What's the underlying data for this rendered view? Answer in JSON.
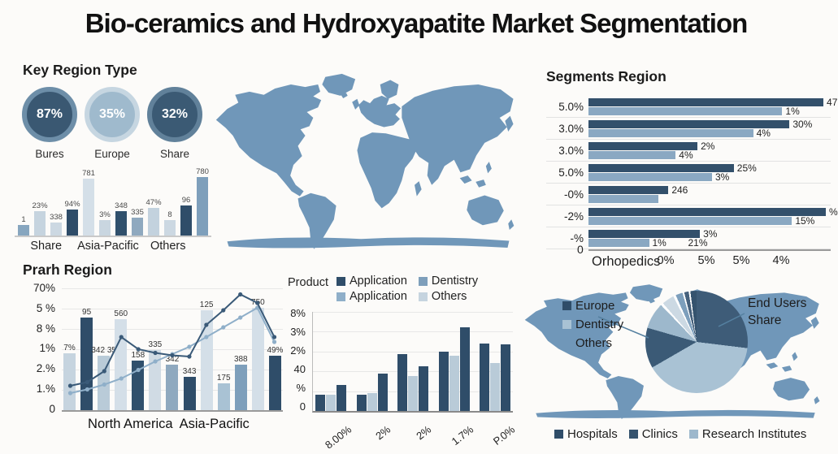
{
  "title": "Bio-ceramics and Hydroxyapatite Market Segmentation",
  "key_region": {
    "heading": "Key Region Type",
    "circles": [
      {
        "value": "87%",
        "label": "Bures",
        "fill": "#3a5872",
        "ring": "#6d8ea8"
      },
      {
        "value": "35%",
        "label": "Europe",
        "fill": "#9fbacd",
        "ring": "#c6d6e1"
      },
      {
        "value": "32%",
        "label": "Share",
        "fill": "#3b5a74",
        "ring": "#61819a"
      }
    ]
  },
  "map_color": "#7097b9",
  "map_faint_color": "#e0e8ee",
  "chart_data": [
    {
      "id": "region-bar",
      "type": "bar",
      "categories": [
        "Share",
        "Asia-Pacific",
        "Others"
      ],
      "ylim": [
        0,
        100
      ],
      "bars": [
        {
          "label": "1",
          "value": 16,
          "color": "#87a6bf"
        },
        {
          "label": "23%",
          "value": 38,
          "color": "#c6d4df"
        },
        {
          "label": "338",
          "value": 20,
          "color": "#ccd8e2"
        },
        {
          "label": "94%",
          "value": 40,
          "color": "#2e4c68"
        },
        {
          "label": "781",
          "value": 88,
          "color": "#d4dfe8"
        },
        {
          "label": "3%",
          "value": 24,
          "color": "#c9d6e0"
        },
        {
          "label": "348",
          "value": 38,
          "color": "#30506c"
        },
        {
          "label": "335",
          "value": 28,
          "color": "#8fa9bf"
        },
        {
          "label": "47%",
          "value": 42,
          "color": "#c3d2de"
        },
        {
          "label": "8",
          "value": 24,
          "color": "#ccd8e2"
        },
        {
          "label": "96",
          "value": 46,
          "color": "#2f4d69"
        },
        {
          "label": "780",
          "value": 92,
          "color": "#7e9fbb"
        }
      ]
    },
    {
      "id": "segments",
      "type": "bar",
      "orientation": "horizontal",
      "title": "Segments Region",
      "y_labels": [
        "5.0%",
        "3.0%",
        "3.0%",
        "5.0%",
        "-0%",
        "-2%",
        "-%"
      ],
      "zero_label": "0",
      "x_labels": [
        "Orhopedics",
        "0%",
        "5%",
        "5%",
        "4%"
      ],
      "colors": {
        "dark": "#33506b",
        "light": "#8aa8c2"
      },
      "rows": [
        {
          "dark": 97,
          "dark_label": "47",
          "light": 80,
          "light_label": "1%"
        },
        {
          "dark": 83,
          "dark_label": "30%",
          "light": 68,
          "light_label": "4%"
        },
        {
          "dark": 45,
          "dark_label": "2%",
          "light": 36,
          "light_label": "4%"
        },
        {
          "dark": 60,
          "dark_label": "25%",
          "light": 51,
          "light_label": "3%"
        },
        {
          "dark": 33,
          "dark_label": "246",
          "light": 29,
          "light_label": ""
        },
        {
          "dark": 98,
          "dark_label": "%",
          "light": 84,
          "light_label": "15%"
        },
        {
          "dark": 46,
          "dark_label": "3%",
          "light": 25,
          "light_label": "1%",
          "extra_label": "21%"
        }
      ]
    },
    {
      "id": "prarh",
      "type": "bar+line",
      "title": "Prarh Region",
      "y_labels": [
        "70%",
        "5 %",
        "8 %",
        "1%",
        "2.%",
        "1.%",
        "0"
      ],
      "categories": [
        "North America",
        "Asia-Pacific"
      ],
      "bars": [
        {
          "label": "7%",
          "value": 47,
          "color": "#c6d4df"
        },
        {
          "label": "95",
          "value": 77,
          "color": "#2f4d69"
        },
        {
          "label": "342 35",
          "value": 45,
          "color": "#b9cbd8"
        },
        {
          "label": "560",
          "value": 76,
          "color": "#d4dfe8"
        },
        {
          "label": "158",
          "value": 41,
          "color": "#30506c"
        },
        {
          "label": "335",
          "value": 50,
          "color": "#d0dbe4"
        },
        {
          "label": "342",
          "value": 38,
          "color": "#8fa9bf"
        },
        {
          "label": "343",
          "value": 28,
          "color": "#2f4d69"
        },
        {
          "label": "125",
          "value": 83,
          "color": "#d4dfe8"
        },
        {
          "label": "175",
          "value": 22,
          "color": "#a9c2d4"
        },
        {
          "label": "388",
          "value": 38,
          "color": "#7e9fbb"
        },
        {
          "label": "750",
          "value": 85,
          "color": "#d4dfe8"
        },
        {
          "label": "49%",
          "value": 45,
          "color": "#2f4d69"
        }
      ],
      "line_dark": {
        "color": "#3a5a78",
        "values": [
          20,
          23,
          32,
          60,
          50,
          47,
          45,
          44,
          70,
          82,
          95,
          88,
          60
        ]
      },
      "line_light": {
        "color": "#8fafc9",
        "values": [
          14,
          17,
          21,
          26,
          33,
          40,
          46,
          52,
          60,
          68,
          76,
          84,
          56
        ]
      }
    },
    {
      "id": "product",
      "type": "bar",
      "legend_title": "Product",
      "legend": [
        {
          "label": "Application",
          "color": "#2f4d69"
        },
        {
          "label": "Dentistry",
          "color": "#7e9fbb"
        },
        {
          "label": "Application",
          "color": "#8fafc9"
        },
        {
          "label": "Others",
          "color": "#c6d4df"
        }
      ],
      "y_labels": [
        "8%",
        "3%",
        "2%",
        "40",
        "%",
        "0"
      ],
      "x_labels": [
        "8.00%",
        "2%",
        "2%",
        "1.7%",
        "P.0%"
      ],
      "bar_colors": [
        "#2f4d69",
        "#b9cbd8",
        "#2f4d69"
      ],
      "groups": [
        [
          17,
          17,
          27
        ],
        [
          17,
          18,
          38
        ],
        [
          58,
          36,
          46
        ],
        [
          61,
          57,
          86
        ],
        [
          69,
          49,
          68
        ]
      ]
    },
    {
      "id": "end-users-pie",
      "type": "pie",
      "callout_label": "End Users Share",
      "legend_left": [
        {
          "label": "Europe",
          "color": "#2f4d69"
        },
        {
          "label": "Dentistry",
          "color": "#a9c2d4"
        },
        {
          "label": "Others",
          "color": ""
        }
      ],
      "slices": [
        {
          "name": "end-users-share",
          "from": 0,
          "to": 97,
          "color": "#3e5c78"
        },
        {
          "name": "clinics-large",
          "from": 97,
          "to": 240,
          "color": "#a9c2d4"
        },
        {
          "name": "hospitals-left",
          "from": 240,
          "to": 286,
          "color": "#3b5a76"
        },
        {
          "name": "dentistry",
          "from": 286,
          "to": 316,
          "color": "#9db8cc"
        },
        {
          "name": "gap",
          "from": 316,
          "to": 319,
          "color": "#ffffff"
        },
        {
          "name": "others-pale",
          "from": 319,
          "to": 333,
          "color": "#ccd9e3"
        },
        {
          "name": "gap",
          "from": 333,
          "to": 336,
          "color": "#ffffff"
        },
        {
          "name": "steel-sliver",
          "from": 336,
          "to": 344,
          "color": "#7d9fbc"
        },
        {
          "name": "gap",
          "from": 344,
          "to": 346,
          "color": "#ffffff"
        },
        {
          "name": "slate-sliver",
          "from": 346,
          "to": 351,
          "color": "#46617c"
        },
        {
          "name": "gap",
          "from": 351,
          "to": 353,
          "color": "#ffffff"
        },
        {
          "name": "navy-sliver",
          "from": 353,
          "to": 360,
          "color": "#35536e"
        }
      ],
      "legend_bottom": [
        {
          "label": "Hospitals",
          "color": "#2f4d69"
        },
        {
          "label": "Clinics",
          "color": "#35536e"
        },
        {
          "label": "Research Institutes",
          "color": "#9db8cc"
        }
      ]
    }
  ]
}
